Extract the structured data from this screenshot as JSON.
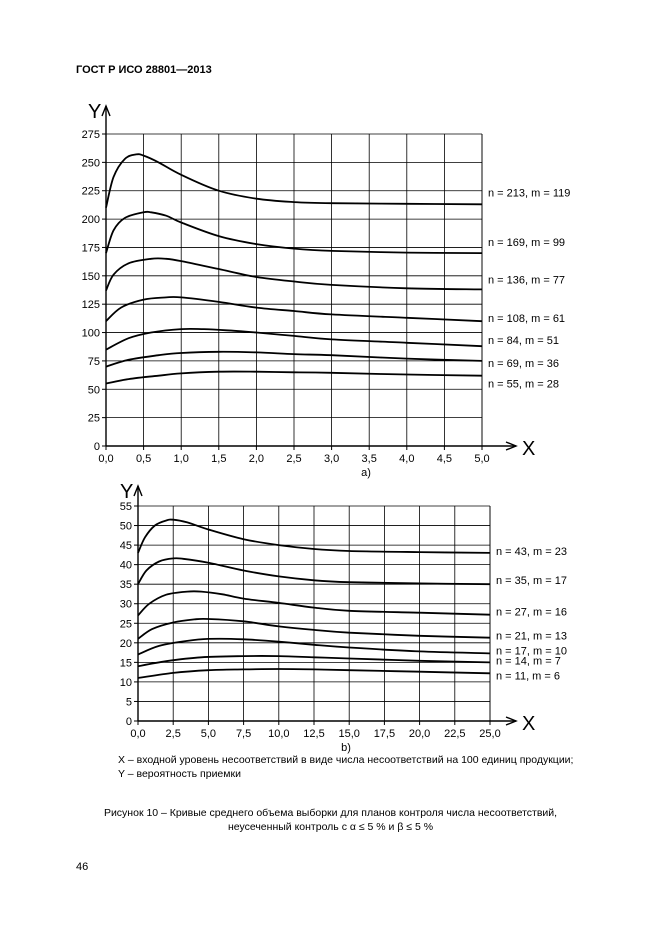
{
  "header": {
    "title": "ГОСТ Р ИСО 28801—2013"
  },
  "chart_data": [
    {
      "type": "line",
      "sublabel": "a)",
      "xlabel": "X",
      "ylabel": "Y",
      "xlim": [
        0,
        5
      ],
      "ylim": [
        0,
        275
      ],
      "xticks": [
        "0,0",
        "0,5",
        "1,0",
        "1,5",
        "2,0",
        "2,5",
        "3,0",
        "3,5",
        "4,0",
        "4,5",
        "5,0"
      ],
      "yticks": [
        "0",
        "25",
        "50",
        "75",
        "100",
        "125",
        "150",
        "175",
        "200",
        "225",
        "250",
        "275"
      ],
      "grid": true,
      "series": [
        {
          "name": "n = 213, m = 119",
          "x": [
            0,
            0.1,
            0.25,
            0.4,
            0.5,
            0.7,
            1.0,
            1.5,
            2.0,
            2.5,
            3.0,
            4.0,
            5.0
          ],
          "y": [
            210,
            237,
            253,
            257,
            256,
            250,
            239,
            225,
            218,
            215,
            214,
            213.5,
            213
          ]
        },
        {
          "name": "n = 169, m = 99",
          "x": [
            0,
            0.1,
            0.25,
            0.5,
            0.6,
            0.8,
            1.0,
            1.5,
            2.0,
            2.5,
            3.0,
            4.0,
            5.0
          ],
          "y": [
            170,
            190,
            201,
            206,
            206,
            203,
            197,
            185,
            178,
            174,
            172,
            170.5,
            170
          ]
        },
        {
          "name": "n = 136, m = 77",
          "x": [
            0,
            0.1,
            0.3,
            0.6,
            0.8,
            1.0,
            1.5,
            2.0,
            2.5,
            3.0,
            4.0,
            5.0
          ],
          "y": [
            137,
            151,
            161,
            165,
            165,
            163,
            156,
            149,
            145,
            142,
            139,
            138
          ]
        },
        {
          "name": "n = 108, m = 61",
          "x": [
            0,
            0.2,
            0.5,
            0.8,
            1.0,
            1.5,
            2.0,
            2.5,
            3.0,
            4.0,
            5.0
          ],
          "y": [
            110,
            122,
            129,
            131,
            131,
            127,
            122,
            119,
            116,
            113,
            110
          ]
        },
        {
          "name": "n = 84, m = 51",
          "x": [
            0,
            0.3,
            0.6,
            1.0,
            1.3,
            1.6,
            2.0,
            2.5,
            3.0,
            4.0,
            5.0
          ],
          "y": [
            85,
            95,
            100,
            103,
            103,
            102,
            100,
            97,
            94,
            91,
            88
          ]
        },
        {
          "name": "n = 69, m = 36",
          "x": [
            0,
            0.3,
            0.7,
            1.0,
            1.5,
            2.0,
            2.5,
            3.0,
            4.0,
            5.0
          ],
          "y": [
            70,
            76,
            80,
            82,
            83,
            82.5,
            81,
            80,
            77,
            75
          ]
        },
        {
          "name": "n = 55, m = 28",
          "x": [
            0,
            0.3,
            0.7,
            1.0,
            1.5,
            2.0,
            2.5,
            3.0,
            4.0,
            5.0
          ],
          "y": [
            55,
            59,
            62,
            64,
            65.5,
            65.5,
            65,
            64.5,
            63,
            62
          ]
        }
      ]
    },
    {
      "type": "line",
      "sublabel": "b)",
      "xlabel": "X",
      "ylabel": "Y",
      "xlim": [
        0,
        25
      ],
      "ylim": [
        0,
        55
      ],
      "xticks": [
        "0,0",
        "2,5",
        "5,0",
        "7,5",
        "10,0",
        "12,5",
        "15,0",
        "17,5",
        "20,0",
        "22,5",
        "25,0"
      ],
      "yticks": [
        "0",
        "5",
        "10",
        "15",
        "20",
        "25",
        "30",
        "35",
        "40",
        "45",
        "50",
        "55"
      ],
      "grid": true,
      "series": [
        {
          "name": "n = 43, m = 23",
          "x": [
            0,
            0.5,
            1.2,
            2.0,
            2.5,
            3.5,
            5.0,
            7.5,
            10.0,
            12.5,
            15.0,
            20.0,
            25.0
          ],
          "y": [
            43,
            47,
            50,
            51.3,
            51.5,
            50.8,
            49,
            46.5,
            45,
            44,
            43.5,
            43.2,
            43
          ]
        },
        {
          "name": "n = 35, m = 17",
          "x": [
            0,
            0.6,
            1.5,
            2.5,
            3.2,
            5.0,
            7.5,
            10.0,
            12.5,
            15.0,
            20.0,
            25.0
          ],
          "y": [
            35,
            38.5,
            40.8,
            41.6,
            41.5,
            40.5,
            38.5,
            37,
            36,
            35.5,
            35.2,
            35
          ]
        },
        {
          "name": "n = 27, m = 16",
          "x": [
            0,
            0.8,
            2.0,
            3.5,
            4.5,
            6.0,
            7.5,
            10.0,
            12.5,
            15.0,
            20.0,
            25.0
          ],
          "y": [
            27,
            30,
            32.3,
            33.1,
            33.1,
            32.4,
            31.3,
            30.2,
            29,
            28.2,
            27.7,
            27.2
          ]
        },
        {
          "name": "n = 21, m = 13",
          "x": [
            0,
            1.0,
            2.5,
            4.0,
            5.0,
            7.5,
            10.0,
            12.5,
            15.0,
            20.0,
            25.0
          ],
          "y": [
            21,
            23.5,
            25.2,
            26,
            26.1,
            25.5,
            24.2,
            23.3,
            22.6,
            21.8,
            21.3
          ]
        },
        {
          "name": "n = 17, m = 10",
          "x": [
            0,
            1.5,
            3.5,
            5.0,
            7.5,
            10.0,
            12.5,
            15.0,
            20.0,
            25.0
          ],
          "y": [
            17,
            19.2,
            20.5,
            21,
            20.9,
            20.3,
            19.5,
            18.8,
            17.8,
            17.3
          ]
        },
        {
          "name": "n = 14, m = 7",
          "x": [
            0,
            2.0,
            4.5,
            7.5,
            10.0,
            12.5,
            15.0,
            20.0,
            25.0
          ],
          "y": [
            14,
            15.3,
            16.3,
            16.6,
            16.6,
            16.3,
            16.0,
            15.4,
            15.0
          ]
        },
        {
          "name": "n = 11, m = 6",
          "x": [
            0,
            2.5,
            5.0,
            7.5,
            10.0,
            12.5,
            15.0,
            20.0,
            25.0
          ],
          "y": [
            11,
            12.3,
            13.0,
            13.2,
            13.3,
            13.2,
            13.0,
            12.6,
            12.2
          ]
        }
      ]
    }
  ],
  "legend": {
    "x_def": "X – входной уровень несоответствий в виде числа несоответствий на 100 единиц продукции;",
    "y_def": "Y – вероятность приемки"
  },
  "caption": {
    "line1": "Рисунок 10 – Кривые среднего объема выборки для планов контроля числа несоответствий,",
    "line2": "неусеченный контроль с α ≤ 5 % и β ≤ 5 %"
  },
  "page_number": "46"
}
